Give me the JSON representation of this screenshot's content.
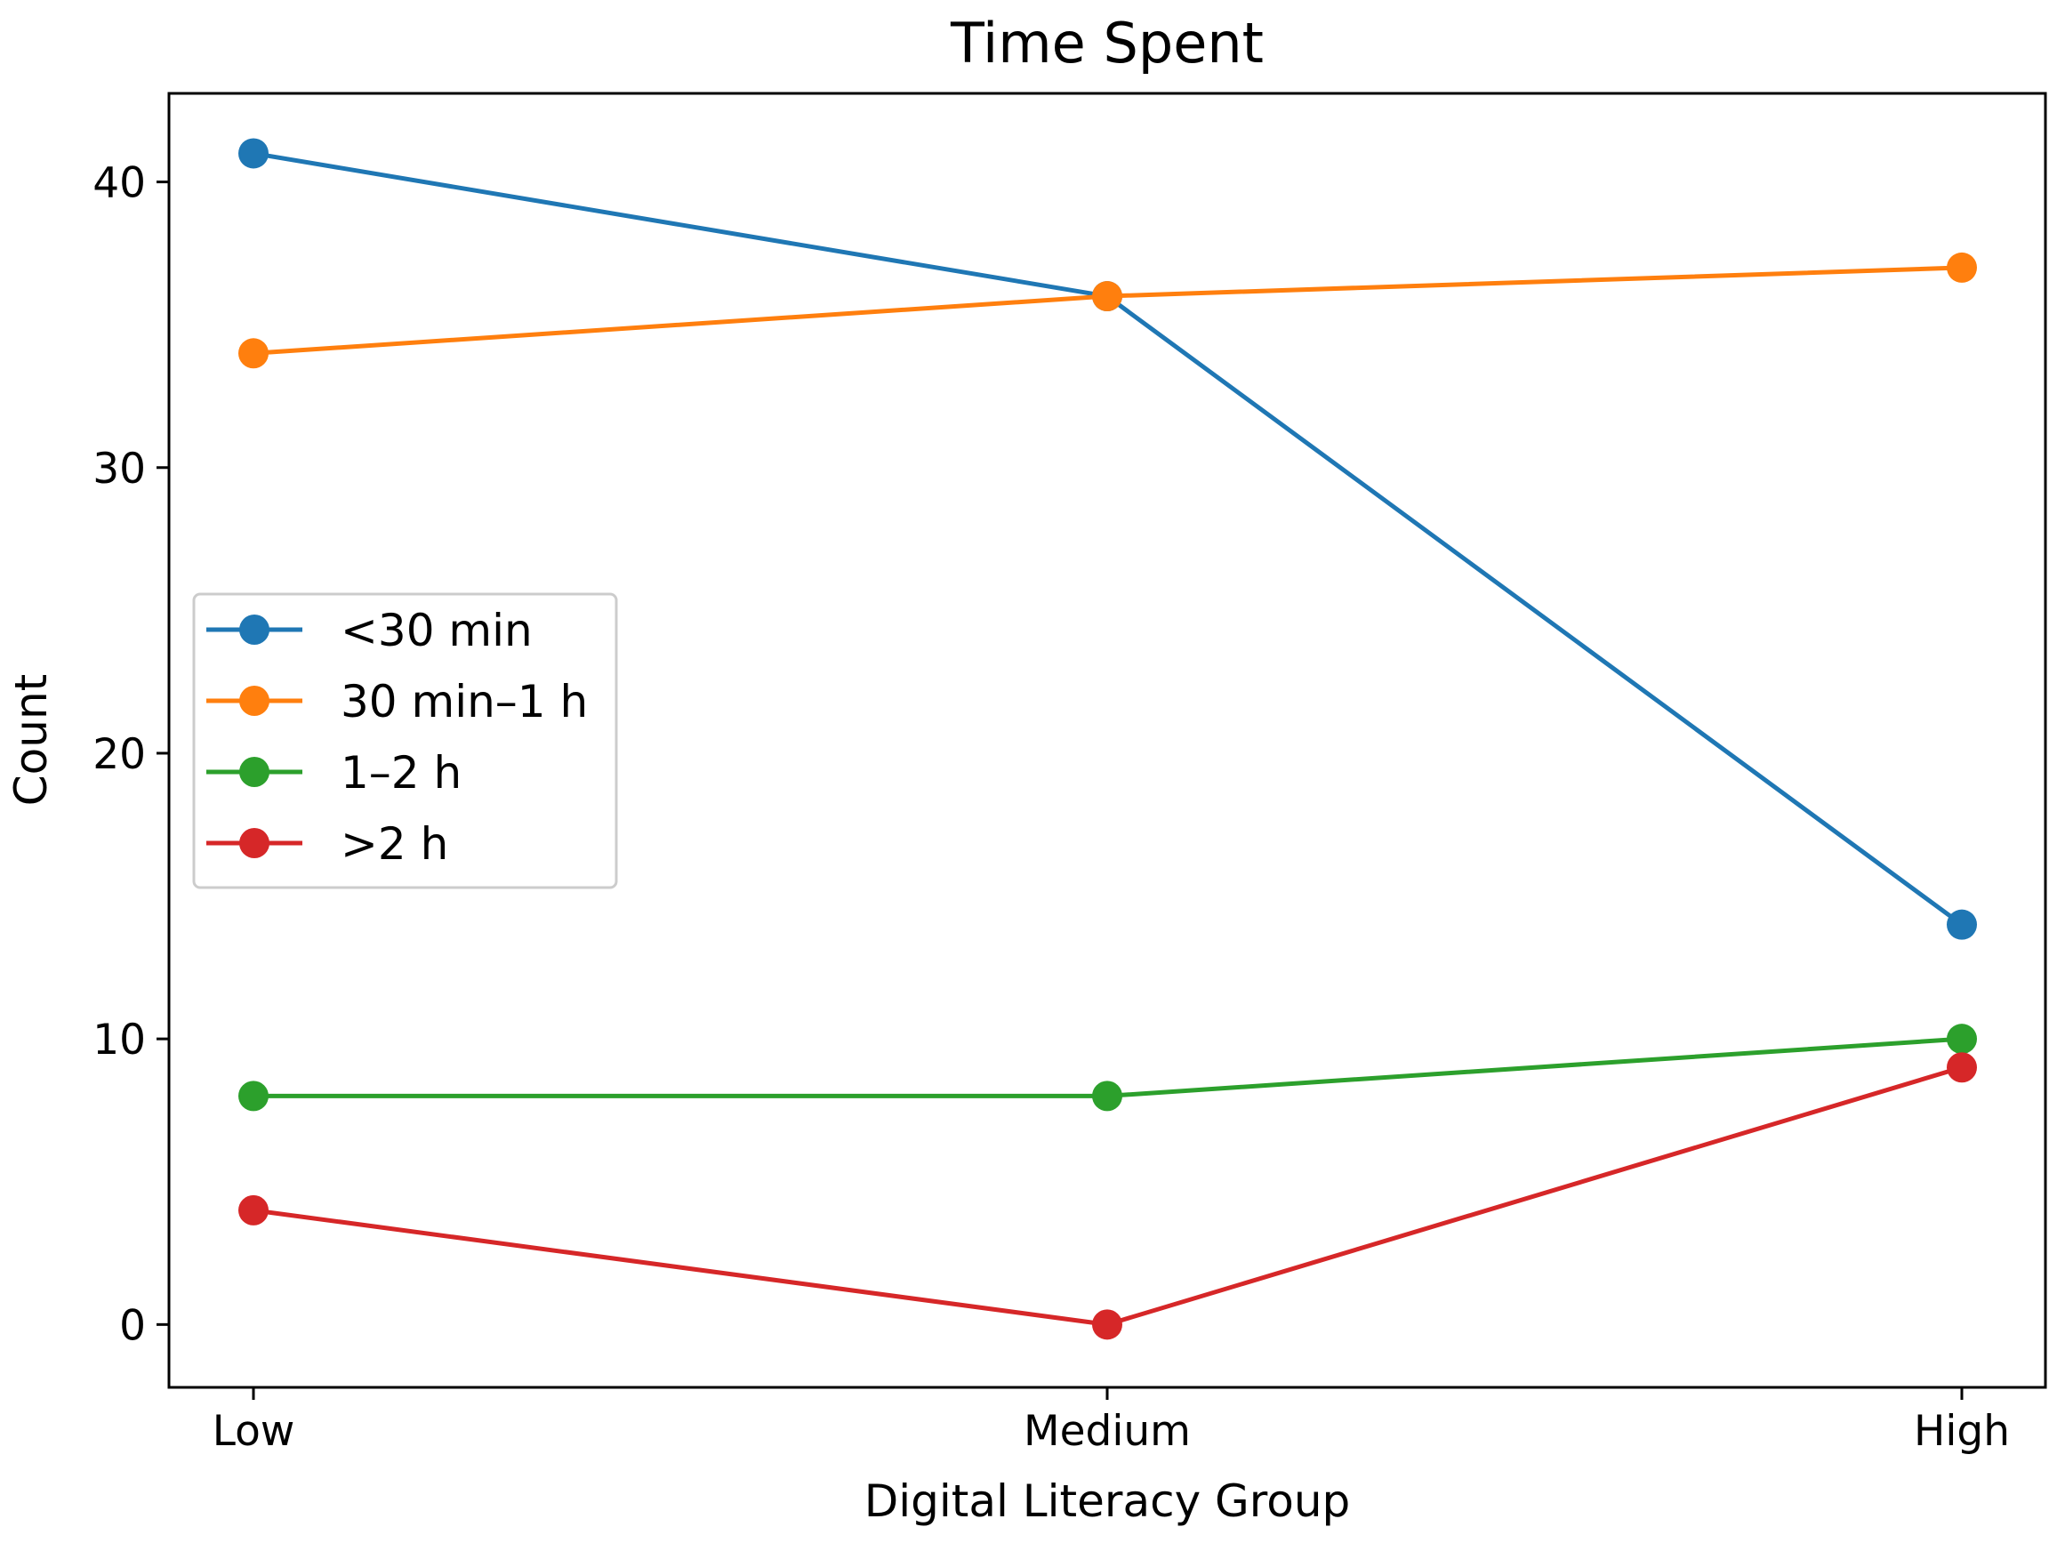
{
  "chart_data": {
    "type": "line",
    "title": "Time Spent",
    "xlabel": "Digital Literacy Group",
    "ylabel": "Count",
    "categories": [
      "Low",
      "Medium",
      "High"
    ],
    "ylim": [
      -2.2,
      43.1
    ],
    "yticks": [
      0,
      10,
      20,
      30,
      40
    ],
    "grid": false,
    "legend_position": "center-left",
    "series": [
      {
        "name": "<30 min",
        "values": [
          41,
          36,
          14
        ],
        "color": "#1f77b4"
      },
      {
        "name": "30 min–1 h",
        "values": [
          34,
          36,
          37
        ],
        "color": "#ff7f0e"
      },
      {
        "name": "1–2 h",
        "values": [
          8,
          8,
          10
        ],
        "color": "#2ca02c"
      },
      {
        "name": ">2 h",
        "values": [
          4,
          0,
          9
        ],
        "color": "#d62728"
      }
    ]
  }
}
